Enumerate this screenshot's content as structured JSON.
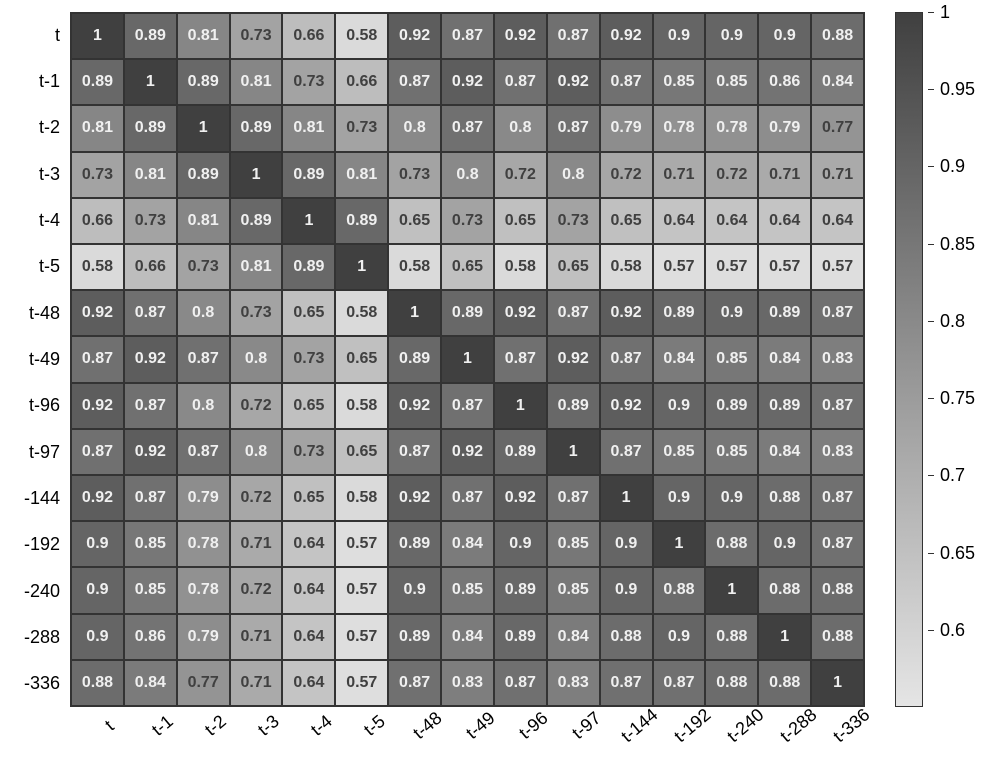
{
  "heatmap": {
    "type": "heatmap",
    "labels": [
      "t",
      "t-1",
      "t-2",
      "t-3",
      "t-4",
      "t-5",
      "t-48",
      "t-49",
      "t-96",
      "t-97",
      "t-144",
      "t-192",
      "t-240",
      "t-288",
      "t-336"
    ],
    "ylabels_display": [
      "t",
      "t-1",
      "t-2",
      "t-3",
      "t-4",
      "t-5",
      "t-48",
      "t-49",
      "t-96",
      "t-97",
      "-144",
      "-192",
      "-240",
      "-288",
      "-336"
    ],
    "values": [
      [
        1,
        0.89,
        0.81,
        0.73,
        0.66,
        0.58,
        0.92,
        0.87,
        0.92,
        0.87,
        0.92,
        0.9,
        0.9,
        0.9,
        0.88
      ],
      [
        0.89,
        1,
        0.89,
        0.81,
        0.73,
        0.66,
        0.87,
        0.92,
        0.87,
        0.92,
        0.87,
        0.85,
        0.85,
        0.86,
        0.84
      ],
      [
        0.81,
        0.89,
        1,
        0.89,
        0.81,
        0.73,
        0.8,
        0.87,
        0.8,
        0.87,
        0.79,
        0.78,
        0.78,
        0.79,
        0.77
      ],
      [
        0.73,
        0.81,
        0.89,
        1,
        0.89,
        0.81,
        0.73,
        0.8,
        0.72,
        0.8,
        0.72,
        0.71,
        0.72,
        0.71,
        0.71
      ],
      [
        0.66,
        0.73,
        0.81,
        0.89,
        1,
        0.89,
        0.65,
        0.73,
        0.65,
        0.73,
        0.65,
        0.64,
        0.64,
        0.64,
        0.64
      ],
      [
        0.58,
        0.66,
        0.73,
        0.81,
        0.89,
        1,
        0.58,
        0.65,
        0.58,
        0.65,
        0.58,
        0.57,
        0.57,
        0.57,
        0.57
      ],
      [
        0.92,
        0.87,
        0.8,
        0.73,
        0.65,
        0.58,
        1,
        0.89,
        0.92,
        0.87,
        0.92,
        0.89,
        0.9,
        0.89,
        0.87
      ],
      [
        0.87,
        0.92,
        0.87,
        0.8,
        0.73,
        0.65,
        0.89,
        1,
        0.87,
        0.92,
        0.87,
        0.84,
        0.85,
        0.84,
        0.83
      ],
      [
        0.92,
        0.87,
        0.8,
        0.72,
        0.65,
        0.58,
        0.92,
        0.87,
        1,
        0.89,
        0.92,
        0.9,
        0.89,
        0.89,
        0.87
      ],
      [
        0.87,
        0.92,
        0.87,
        0.8,
        0.73,
        0.65,
        0.87,
        0.92,
        0.89,
        1,
        0.87,
        0.85,
        0.85,
        0.84,
        0.83
      ],
      [
        0.92,
        0.87,
        0.79,
        0.72,
        0.65,
        0.58,
        0.92,
        0.87,
        0.92,
        0.87,
        1,
        0.9,
        0.9,
        0.88,
        0.87
      ],
      [
        0.9,
        0.85,
        0.78,
        0.71,
        0.64,
        0.57,
        0.89,
        0.84,
        0.9,
        0.85,
        0.9,
        1,
        0.88,
        0.9,
        0.87
      ],
      [
        0.9,
        0.85,
        0.78,
        0.72,
        0.64,
        0.57,
        0.9,
        0.85,
        0.89,
        0.85,
        0.9,
        0.88,
        1,
        0.88,
        0.88
      ],
      [
        0.9,
        0.86,
        0.79,
        0.71,
        0.64,
        0.57,
        0.89,
        0.84,
        0.89,
        0.84,
        0.88,
        0.9,
        0.88,
        1,
        0.88
      ],
      [
        0.88,
        0.84,
        0.77,
        0.71,
        0.64,
        0.57,
        0.87,
        0.83,
        0.87,
        0.83,
        0.87,
        0.87,
        0.88,
        0.88,
        1
      ]
    ],
    "vmin": 0.55,
    "vmax": 1.0,
    "colormap_low": "#e5e5e5",
    "colormap_high": "#404040",
    "cell_border_color": "#333333",
    "text_color_light": "#f0f0f0",
    "text_color_dark": "#404040",
    "text_threshold": 0.78,
    "cell_fontsize": 16,
    "label_fontsize": 18,
    "background_color": "#ffffff",
    "xlabel_rotation_deg": -40
  },
  "colorbar": {
    "ticks": [
      1,
      0.95,
      0.9,
      0.85,
      0.8,
      0.75,
      0.7,
      0.65,
      0.6
    ],
    "vmin": 0.55,
    "vmax": 1.0,
    "gradient_top": "#404040",
    "gradient_bottom": "#e5e5e5",
    "tick_fontsize": 18
  }
}
